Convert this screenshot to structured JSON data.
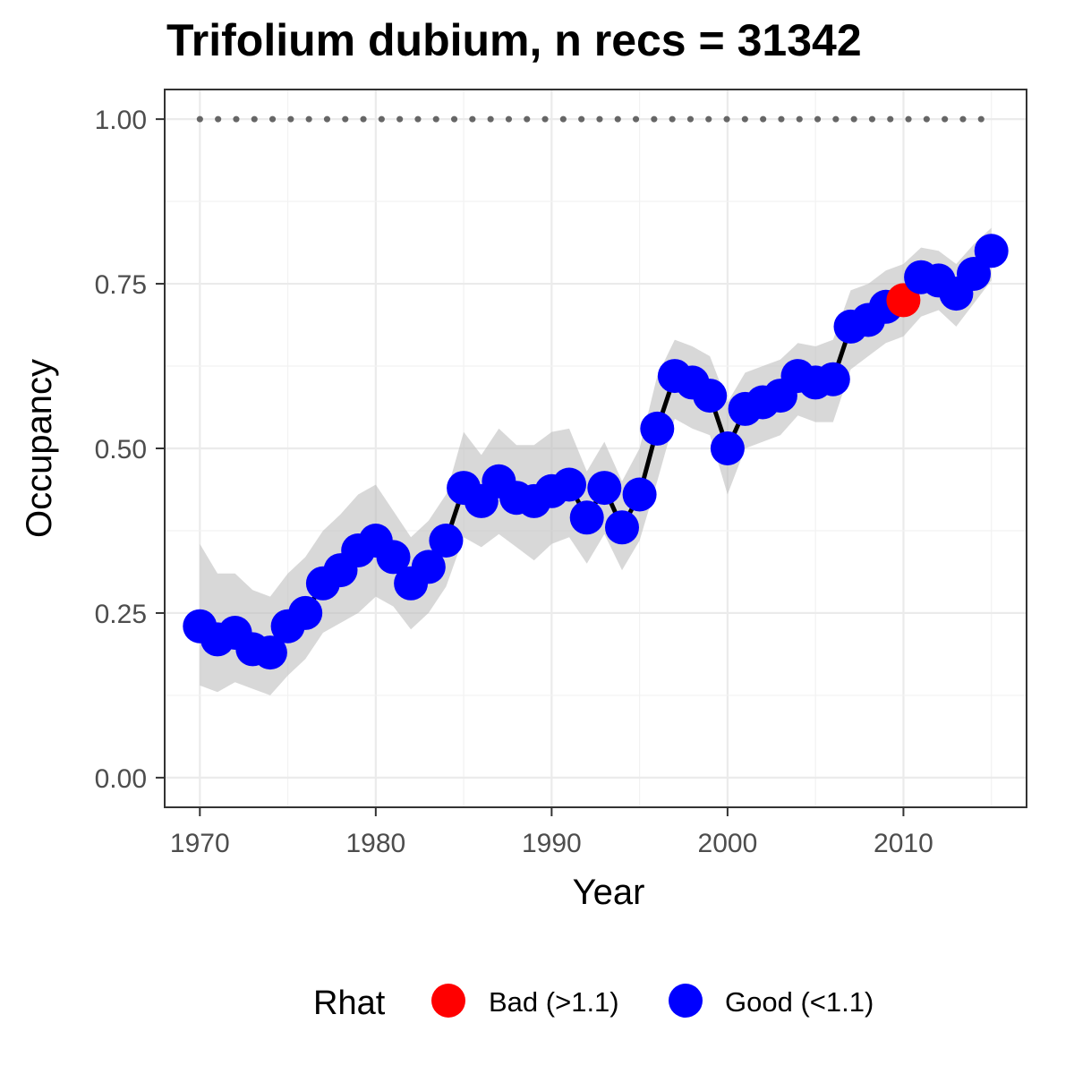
{
  "chart_data": {
    "type": "line",
    "title": "Trifolium dubium, n recs = 31342",
    "xlabel": "Year",
    "ylabel": "Occupancy",
    "xlim": [
      1968,
      2017
    ],
    "ylim": [
      -0.045,
      1.045
    ],
    "x_ticks": [
      1970,
      1980,
      1990,
      2000,
      2010
    ],
    "x_tick_labels": [
      "1970",
      "1980",
      "1990",
      "2000",
      "2010"
    ],
    "y_ticks": [
      0.0,
      0.25,
      0.5,
      0.75,
      1.0
    ],
    "y_tick_labels": [
      "0.00",
      "0.25",
      "0.50",
      "0.75",
      "1.00"
    ],
    "grid": true,
    "reference_line": {
      "y": 1.0,
      "style": "dotted",
      "color": "#666666"
    },
    "colors": {
      "bad": "#ff0000",
      "good": "#0000ff",
      "line": "#000000",
      "ribbon": "#bebebe"
    },
    "legend": {
      "position": "bottom",
      "title": "Rhat",
      "entries": [
        {
          "label": "Bad (>1.1)",
          "color": "#ff0000"
        },
        {
          "label": "Good (<1.1)",
          "color": "#0000ff"
        }
      ]
    },
    "x": [
      1970,
      1971,
      1972,
      1973,
      1974,
      1975,
      1976,
      1977,
      1978,
      1979,
      1980,
      1981,
      1982,
      1983,
      1984,
      1985,
      1986,
      1987,
      1988,
      1989,
      1990,
      1991,
      1992,
      1993,
      1994,
      1995,
      1996,
      1997,
      1998,
      1999,
      2000,
      2001,
      2002,
      2003,
      2004,
      2005,
      2006,
      2007,
      2008,
      2009,
      2010,
      2011,
      2012,
      2013,
      2014,
      2015
    ],
    "series": [
      {
        "values": [
          0.23,
          0.21,
          0.22,
          0.195,
          0.19,
          0.23,
          0.25,
          0.295,
          0.315,
          0.345,
          0.36,
          0.335,
          0.295,
          0.32,
          0.36,
          0.44,
          0.42,
          0.45,
          0.425,
          0.42,
          0.435,
          0.445,
          0.395,
          0.44,
          0.38,
          0.43,
          0.53,
          0.61,
          0.6,
          0.58,
          0.5,
          0.56,
          0.57,
          0.58,
          0.61,
          0.6,
          0.605,
          0.685,
          0.695,
          0.715,
          0.725,
          0.76,
          0.755,
          0.735,
          0.765,
          0.8
        ],
        "lower": [
          0.14,
          0.13,
          0.145,
          0.135,
          0.125,
          0.155,
          0.18,
          0.22,
          0.235,
          0.25,
          0.275,
          0.26,
          0.225,
          0.25,
          0.29,
          0.365,
          0.35,
          0.37,
          0.35,
          0.33,
          0.355,
          0.365,
          0.325,
          0.37,
          0.315,
          0.36,
          0.45,
          0.545,
          0.53,
          0.52,
          0.43,
          0.5,
          0.51,
          0.52,
          0.55,
          0.54,
          0.54,
          0.62,
          0.64,
          0.66,
          0.67,
          0.7,
          0.71,
          0.685,
          0.72,
          0.755
        ],
        "upper": [
          0.355,
          0.31,
          0.31,
          0.285,
          0.275,
          0.31,
          0.335,
          0.375,
          0.4,
          0.43,
          0.445,
          0.405,
          0.365,
          0.39,
          0.43,
          0.525,
          0.49,
          0.53,
          0.505,
          0.505,
          0.525,
          0.53,
          0.465,
          0.51,
          0.45,
          0.5,
          0.61,
          0.665,
          0.655,
          0.64,
          0.57,
          0.615,
          0.625,
          0.635,
          0.66,
          0.655,
          0.665,
          0.74,
          0.75,
          0.77,
          0.78,
          0.805,
          0.8,
          0.78,
          0.81,
          0.835
        ],
        "rhat_status": [
          "good",
          "good",
          "good",
          "good",
          "good",
          "good",
          "good",
          "good",
          "good",
          "good",
          "good",
          "good",
          "good",
          "good",
          "good",
          "good",
          "good",
          "good",
          "good",
          "good",
          "good",
          "good",
          "good",
          "good",
          "good",
          "good",
          "good",
          "good",
          "good",
          "good",
          "good",
          "good",
          "good",
          "good",
          "good",
          "good",
          "good",
          "good",
          "good",
          "good",
          "bad",
          "good",
          "good",
          "good",
          "good",
          "good"
        ]
      }
    ]
  }
}
